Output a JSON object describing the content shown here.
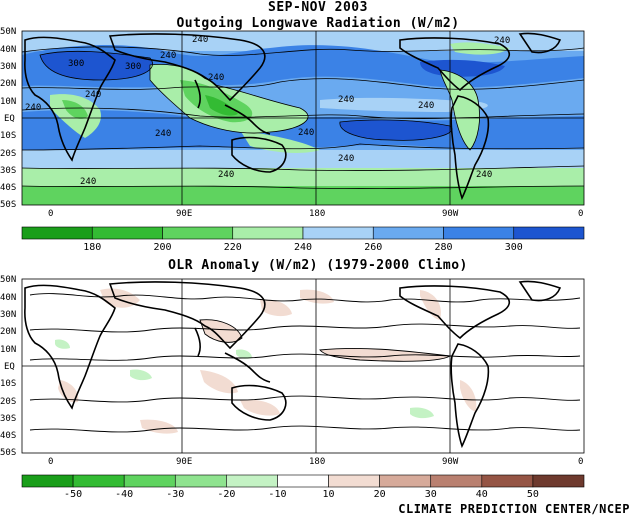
{
  "top_panel": {
    "title_line1": "SEP-NOV 2003",
    "title_line2": "Outgoing Longwave Radiation (W/m2)",
    "lat_labels": [
      "50N",
      "40N",
      "30N",
      "20N",
      "10N",
      "EQ",
      "10S",
      "20S",
      "30S",
      "40S",
      "50S"
    ],
    "lon_labels": [
      "0",
      "90E",
      "180",
      "90W",
      "0"
    ],
    "contour_labels": [
      "300",
      "300",
      "240",
      "240",
      "240",
      "240",
      "240",
      "240",
      "240",
      "240",
      "240",
      "240",
      "240",
      "240",
      "240",
      "240"
    ],
    "colorbar": {
      "ticks": [
        "180",
        "200",
        "220",
        "240",
        "260",
        "280",
        "300"
      ],
      "colors": [
        "#1a9e1a",
        "#33bb33",
        "#5fd35f",
        "#a9eea9",
        "#a8d2f6",
        "#6aaaf0",
        "#3b82e6",
        "#1d55d0"
      ]
    }
  },
  "bottom_panel": {
    "title": "OLR Anomaly (W/m2) (1979-2000 Climo)",
    "lat_labels": [
      "50N",
      "40N",
      "30N",
      "20N",
      "10N",
      "EQ",
      "10S",
      "20S",
      "30S",
      "40S",
      "50S"
    ],
    "lon_labels": [
      "0",
      "90E",
      "180",
      "90W",
      "0"
    ],
    "colorbar": {
      "ticks": [
        "-50",
        "-40",
        "-30",
        "-20",
        "-10",
        "10",
        "20",
        "30",
        "40",
        "50"
      ],
      "colors": [
        "#1a9e1a",
        "#33bb33",
        "#5fd35f",
        "#8fe38f",
        "#c4f2c4",
        "#ffffff",
        "#f2dcd2",
        "#d6aa9a",
        "#b98070",
        "#955545",
        "#6e3a2e"
      ]
    }
  },
  "credit": "CLIMATE PREDICTION CENTER/NCEP"
}
